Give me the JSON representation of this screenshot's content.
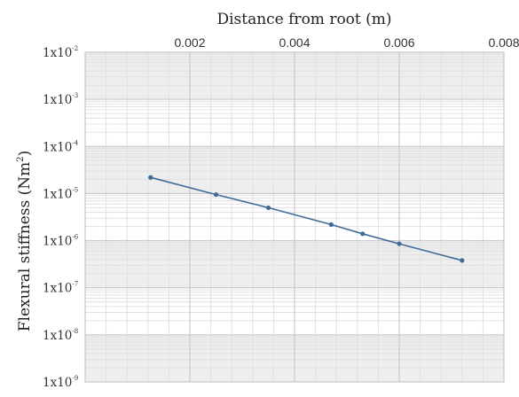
{
  "chart_data": {
    "type": "line",
    "title": "",
    "xlabel": "Distance from root (m)",
    "ylabel": {
      "main": "Flexural stiffness (Nm",
      "sup": "2",
      "close": ")"
    },
    "x_axis_position": "top",
    "x_ticks": [
      "0.002",
      "0.004",
      "0.006",
      "0.008"
    ],
    "x_tick_values": [
      0.002,
      0.004,
      0.006,
      0.008
    ],
    "xlim": [
      0.0,
      0.008
    ],
    "y_scale": "log",
    "ylim": [
      1e-09,
      0.01
    ],
    "y_tick_labels": [
      {
        "base": "1x10",
        "exp": "-2"
      },
      {
        "base": "1x10",
        "exp": "-3"
      },
      {
        "base": "1x10",
        "exp": "-4"
      },
      {
        "base": "1x10",
        "exp": "-5"
      },
      {
        "base": "1x10",
        "exp": "-6"
      },
      {
        "base": "1x10",
        "exp": "-7"
      },
      {
        "base": "1x10",
        "exp": "-8"
      },
      {
        "base": "1x10",
        "exp": "-9"
      }
    ],
    "y_tick_values": [
      0.01,
      0.001,
      0.0001,
      1e-05,
      1e-06,
      1e-07,
      1e-08,
      1e-09
    ],
    "grid": true,
    "legend": "none",
    "series": [
      {
        "x": [
          0.00125,
          0.0025,
          0.0035,
          0.0047,
          0.0053,
          0.006,
          0.0072
        ],
        "y": [
          2.2e-05,
          9.5e-06,
          5e-06,
          2.2e-06,
          1.4e-06,
          8.6e-07,
          3.8e-07
        ],
        "color": "#3e6b97"
      }
    ]
  }
}
